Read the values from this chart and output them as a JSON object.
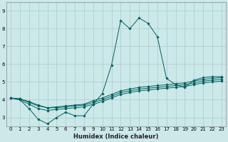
{
  "title": "",
  "xlabel": "Humidex (Indice chaleur)",
  "bg_color": "#cce8e8",
  "grid_color": "#aacccc",
  "line_color": "#006060",
  "xlim": [
    -0.5,
    23.5
  ],
  "ylim": [
    2.5,
    9.5
  ],
  "xticks": [
    0,
    1,
    2,
    3,
    4,
    5,
    6,
    7,
    8,
    9,
    10,
    11,
    12,
    13,
    14,
    15,
    16,
    17,
    18,
    19,
    20,
    21,
    22,
    23
  ],
  "yticks": [
    3,
    4,
    5,
    6,
    7,
    8,
    9
  ],
  "ytick_labels": [
    "3",
    "4",
    "5",
    "6",
    "7",
    "8",
    "9"
  ],
  "lines": [
    [
      4.1,
      4.0,
      3.5,
      2.9,
      2.65,
      3.0,
      3.3,
      3.1,
      3.1,
      3.75,
      4.35,
      5.95,
      8.45,
      8.0,
      8.6,
      8.3,
      7.55,
      5.2,
      4.85,
      4.7,
      5.1,
      5.25,
      5.3,
      5.3
    ],
    [
      4.1,
      4.05,
      3.9,
      3.7,
      3.55,
      3.6,
      3.65,
      3.7,
      3.75,
      3.95,
      4.1,
      4.3,
      4.5,
      4.6,
      4.7,
      4.75,
      4.8,
      4.85,
      4.9,
      4.95,
      5.05,
      5.15,
      5.2,
      5.25
    ],
    [
      4.1,
      4.05,
      3.85,
      3.65,
      3.55,
      3.55,
      3.6,
      3.65,
      3.7,
      3.85,
      4.0,
      4.2,
      4.4,
      4.5,
      4.6,
      4.65,
      4.7,
      4.75,
      4.8,
      4.85,
      4.95,
      5.05,
      5.1,
      5.15
    ],
    [
      4.1,
      4.0,
      3.75,
      3.5,
      3.4,
      3.45,
      3.5,
      3.55,
      3.6,
      3.75,
      3.9,
      4.1,
      4.3,
      4.4,
      4.5,
      4.55,
      4.6,
      4.65,
      4.7,
      4.75,
      4.85,
      4.95,
      5.0,
      5.05
    ]
  ],
  "xlabel_fontsize": 6.0,
  "tick_fontsize": 5.0,
  "marker_size": 1.8,
  "line_width": 0.7
}
